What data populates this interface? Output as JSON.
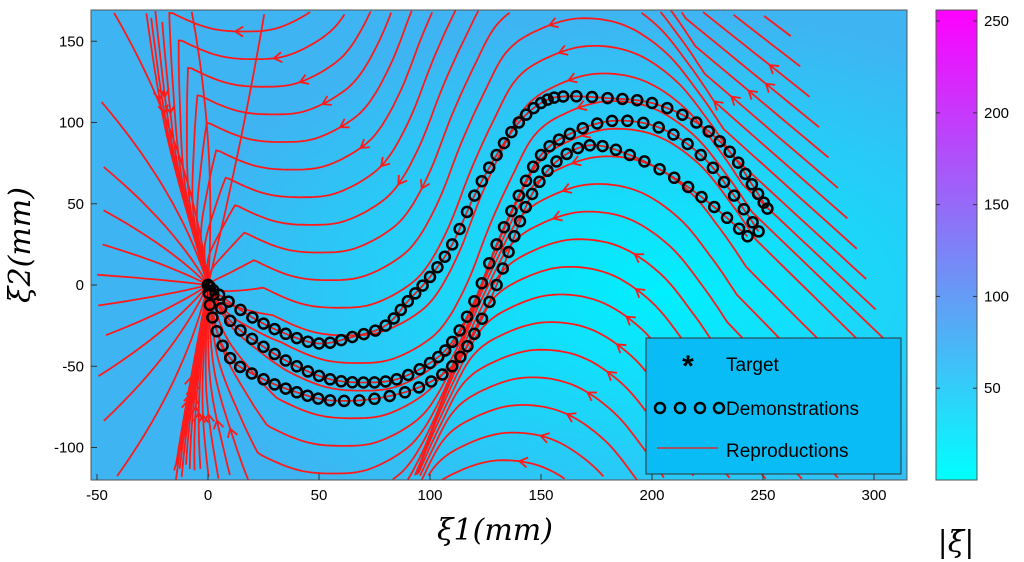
{
  "chart_data": {
    "type": "line",
    "subtype": "streamline-vector-field",
    "xlabel": "ξ1(mm)",
    "ylabel": "ξ2(mm)",
    "xlim": [
      -50,
      316
    ],
    "ylim": [
      -120,
      169
    ],
    "xticks": [
      -50,
      0,
      50,
      100,
      150,
      200,
      250,
      300
    ],
    "yticks": [
      -100,
      -50,
      0,
      50,
      100,
      150
    ],
    "colorbar": {
      "label": "|ξ̇|",
      "range": [
        0,
        256
      ],
      "ticks": [
        50,
        100,
        150,
        200,
        250
      ],
      "colors": [
        "#00ffff",
        "#5aa6f5",
        "#ff00ff"
      ]
    },
    "legend": {
      "position": "bottom-right",
      "entries": [
        "Target",
        "Demonstrations",
        "Reproductions"
      ]
    },
    "colors": {
      "stream": "#ff1a1a",
      "demo": "#000000",
      "background": "#3ab8f0",
      "legend_bg": "#0abcf5"
    },
    "target": [
      0,
      0
    ],
    "series": [
      {
        "name": "Demonstration 1",
        "points": [
          [
            252,
            47
          ],
          [
            245,
            62
          ],
          [
            235,
            82
          ],
          [
            220,
            100
          ],
          [
            200,
            112
          ],
          [
            180,
            115
          ],
          [
            160,
            116
          ],
          [
            150,
            112
          ],
          [
            140,
            100
          ],
          [
            130,
            80
          ],
          [
            120,
            55
          ],
          [
            110,
            25
          ],
          [
            100,
            5
          ],
          [
            90,
            -10
          ],
          [
            80,
            -25
          ],
          [
            65,
            -32
          ],
          [
            50,
            -36
          ],
          [
            35,
            -30
          ],
          [
            20,
            -20
          ],
          [
            5,
            -6
          ],
          [
            0,
            0
          ]
        ]
      },
      {
        "name": "Demonstration 2",
        "points": [
          [
            248,
            33
          ],
          [
            237,
            55
          ],
          [
            222,
            80
          ],
          [
            203,
            97
          ],
          [
            182,
            101
          ],
          [
            163,
            93
          ],
          [
            150,
            80
          ],
          [
            140,
            55
          ],
          [
            130,
            25
          ],
          [
            120,
            -10
          ],
          [
            110,
            -35
          ],
          [
            100,
            -48
          ],
          [
            85,
            -58
          ],
          [
            70,
            -60
          ],
          [
            55,
            -58
          ],
          [
            40,
            -50
          ],
          [
            25,
            -38
          ],
          [
            10,
            -22
          ],
          [
            0,
            0
          ]
        ]
      },
      {
        "name": "Demonstration 3",
        "points": [
          [
            243,
            30
          ],
          [
            228,
            48
          ],
          [
            210,
            66
          ],
          [
            190,
            80
          ],
          [
            172,
            86
          ],
          [
            157,
            76
          ],
          [
            146,
            56
          ],
          [
            138,
            30
          ],
          [
            130,
            0
          ],
          [
            120,
            -30
          ],
          [
            110,
            -50
          ],
          [
            95,
            -63
          ],
          [
            75,
            -70
          ],
          [
            55,
            -71
          ],
          [
            40,
            -66
          ],
          [
            25,
            -58
          ],
          [
            10,
            -45
          ],
          [
            2,
            -20
          ],
          [
            0,
            0
          ]
        ]
      }
    ]
  }
}
